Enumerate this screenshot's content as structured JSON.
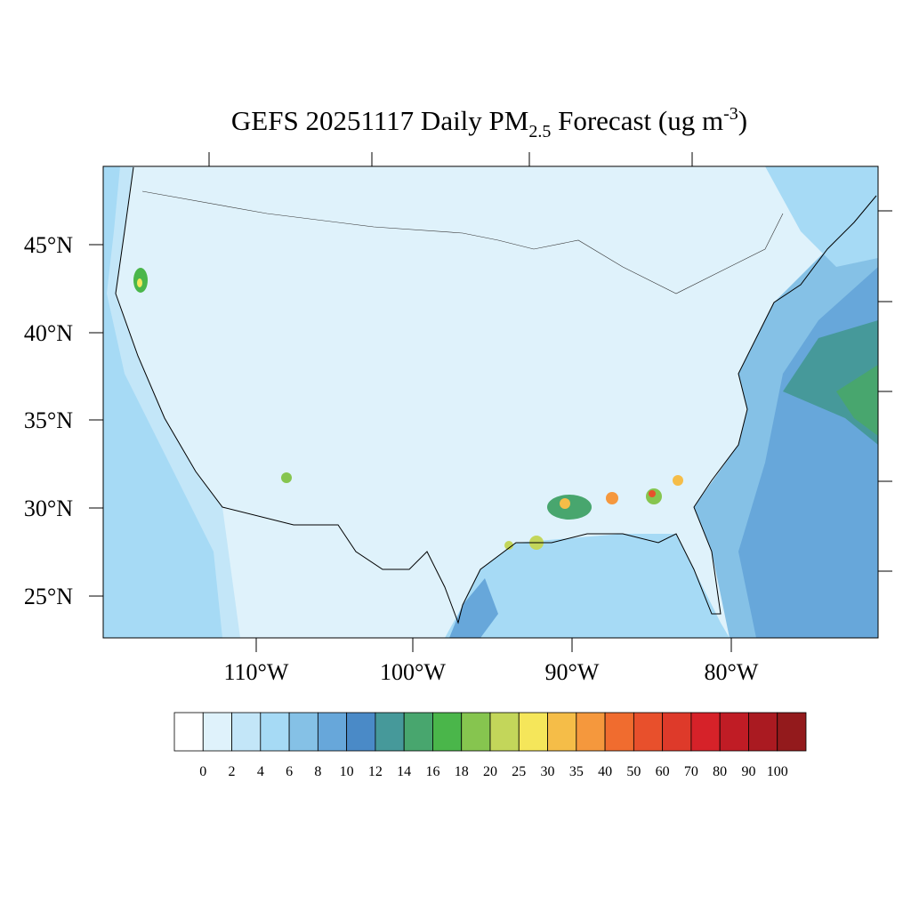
{
  "title": {
    "prefix": "GEFS 20251117 Daily PM",
    "subscript": "2.5",
    "middle": " Forecast (ug m",
    "superscript": "-3",
    "suffix": ")"
  },
  "lat_labels": [
    "25°N",
    "30°N",
    "35°N",
    "40°N",
    "45°N"
  ],
  "lon_labels": [
    "110°W",
    "100°W",
    "90°W",
    "80°W"
  ],
  "colorbar": {
    "labels": [
      "0",
      "2",
      "4",
      "6",
      "8",
      "10",
      "12",
      "14",
      "16",
      "18",
      "20",
      "25",
      "30",
      "35",
      "40",
      "50",
      "60",
      "70",
      "80",
      "90",
      "100"
    ],
    "colors": [
      "#ffffff",
      "#dff2fb",
      "#c3e6f8",
      "#a6daf5",
      "#85c1e6",
      "#67a7da",
      "#4a8ac7",
      "#46999a",
      "#48a66e",
      "#4ab64a",
      "#86c54f",
      "#c3d65a",
      "#f5e65a",
      "#f5bd48",
      "#f5983d",
      "#f06c2f",
      "#e8502c",
      "#de3a2a",
      "#d62229",
      "#c01c25",
      "#aa1a21",
      "#931a1c"
    ]
  }
}
